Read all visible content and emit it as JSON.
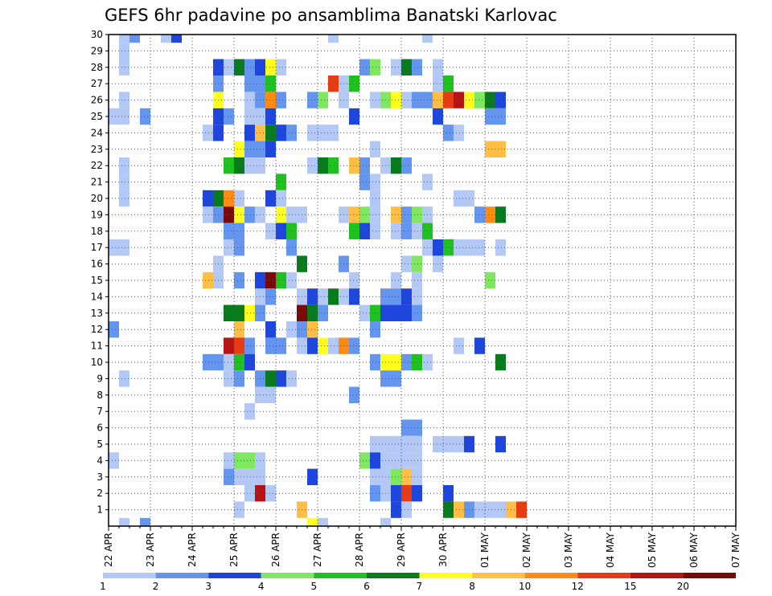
{
  "chart_data": {
    "type": "heatmap",
    "title": "GEFS 6hr padavine po ansamblima Banatski Karlovac",
    "xlabel": "",
    "ylabel": "",
    "x_tick_labels": [
      "22 APR",
      "23 APR",
      "24 APR",
      "25 APR",
      "26 APR",
      "27 APR",
      "28 APR",
      "29 APR",
      "30 APR",
      "01 MAY",
      "02 MAY",
      "03 MAY",
      "04 MAY",
      "05 MAY",
      "06 MAY",
      "07 MAY"
    ],
    "x_steps_per_day": 4,
    "x_steps": 60,
    "y_range": [
      0,
      30
    ],
    "y_ticks": [
      1,
      2,
      3,
      4,
      5,
      6,
      7,
      8,
      9,
      10,
      11,
      12,
      13,
      14,
      15,
      16,
      17,
      18,
      19,
      20,
      21,
      22,
      23,
      24,
      25,
      26,
      27,
      28,
      29,
      30
    ],
    "grid": true,
    "legend": {
      "placement": "bottom",
      "labels": [
        "1",
        "2",
        "3",
        "4",
        "5",
        "6",
        "7",
        "8",
        "10",
        "12",
        "15",
        "20"
      ],
      "colors": [
        "#b4c8f5",
        "#6496f0",
        "#1e46dc",
        "#80e860",
        "#20c020",
        "#0a7a1e",
        "#ffff20",
        "#ffbe46",
        "#ff8a14",
        "#e63c14",
        "#b41414",
        "#780a0a"
      ]
    },
    "cells": [
      [
        1,
        30,
        1
      ],
      [
        2,
        30,
        2
      ],
      [
        5,
        30,
        1
      ],
      [
        6,
        30,
        3
      ],
      [
        21,
        30,
        1
      ],
      [
        30,
        30,
        1
      ],
      [
        1,
        29,
        1
      ],
      [
        1,
        28,
        1
      ],
      [
        10,
        28,
        3
      ],
      [
        11,
        28,
        1
      ],
      [
        12,
        28,
        6
      ],
      [
        13,
        28,
        2
      ],
      [
        14,
        28,
        3
      ],
      [
        15,
        28,
        7
      ],
      [
        16,
        28,
        1
      ],
      [
        24,
        28,
        2
      ],
      [
        25,
        28,
        4
      ],
      [
        27,
        28,
        1
      ],
      [
        28,
        28,
        6
      ],
      [
        29,
        28,
        2
      ],
      [
        31,
        28,
        1
      ],
      [
        10,
        27,
        2
      ],
      [
        13,
        27,
        2
      ],
      [
        14,
        27,
        2
      ],
      [
        15,
        27,
        5
      ],
      [
        21,
        27,
        10
      ],
      [
        22,
        27,
        1
      ],
      [
        23,
        27,
        5
      ],
      [
        31,
        27,
        1
      ],
      [
        32,
        27,
        5
      ],
      [
        1,
        26,
        1
      ],
      [
        10,
        26,
        7
      ],
      [
        13,
        26,
        1
      ],
      [
        14,
        26,
        2
      ],
      [
        15,
        26,
        9
      ],
      [
        16,
        26,
        2
      ],
      [
        19,
        26,
        2
      ],
      [
        20,
        26,
        4
      ],
      [
        22,
        26,
        1
      ],
      [
        25,
        26,
        1
      ],
      [
        26,
        26,
        4
      ],
      [
        27,
        26,
        7
      ],
      [
        28,
        26,
        1
      ],
      [
        29,
        26,
        2
      ],
      [
        30,
        26,
        2
      ],
      [
        31,
        26,
        8
      ],
      [
        32,
        26,
        10
      ],
      [
        33,
        26,
        11
      ],
      [
        34,
        26,
        7
      ],
      [
        35,
        26,
        4
      ],
      [
        36,
        26,
        6
      ],
      [
        37,
        26,
        3
      ],
      [
        0,
        25,
        1
      ],
      [
        1,
        25,
        1
      ],
      [
        3,
        25,
        2
      ],
      [
        10,
        25,
        3
      ],
      [
        11,
        25,
        2
      ],
      [
        13,
        25,
        1
      ],
      [
        14,
        25,
        1
      ],
      [
        15,
        25,
        3
      ],
      [
        23,
        25,
        3
      ],
      [
        31,
        25,
        3
      ],
      [
        36,
        25,
        2
      ],
      [
        37,
        25,
        2
      ],
      [
        9,
        24,
        1
      ],
      [
        10,
        24,
        3
      ],
      [
        13,
        24,
        3
      ],
      [
        14,
        24,
        8
      ],
      [
        15,
        24,
        6
      ],
      [
        16,
        24,
        3
      ],
      [
        17,
        24,
        2
      ],
      [
        19,
        24,
        1
      ],
      [
        20,
        24,
        1
      ],
      [
        21,
        24,
        1
      ],
      [
        32,
        24,
        2
      ],
      [
        33,
        24,
        1
      ],
      [
        12,
        23,
        7
      ],
      [
        13,
        23,
        2
      ],
      [
        14,
        23,
        2
      ],
      [
        15,
        23,
        3
      ],
      [
        25,
        23,
        1
      ],
      [
        36,
        23,
        8
      ],
      [
        37,
        23,
        8
      ],
      [
        1,
        22,
        1
      ],
      [
        11,
        22,
        5
      ],
      [
        12,
        22,
        6
      ],
      [
        13,
        22,
        1
      ],
      [
        14,
        22,
        1
      ],
      [
        19,
        22,
        1
      ],
      [
        20,
        22,
        6
      ],
      [
        21,
        22,
        5
      ],
      [
        23,
        22,
        8
      ],
      [
        24,
        22,
        2
      ],
      [
        26,
        22,
        1
      ],
      [
        27,
        22,
        6
      ],
      [
        28,
        22,
        2
      ],
      [
        1,
        21,
        1
      ],
      [
        16,
        21,
        5
      ],
      [
        24,
        21,
        2
      ],
      [
        25,
        21,
        1
      ],
      [
        30,
        21,
        1
      ],
      [
        1,
        20,
        1
      ],
      [
        9,
        20,
        3
      ],
      [
        10,
        20,
        6
      ],
      [
        11,
        20,
        9
      ],
      [
        12,
        20,
        1
      ],
      [
        15,
        20,
        3
      ],
      [
        16,
        20,
        1
      ],
      [
        25,
        20,
        1
      ],
      [
        33,
        20,
        1
      ],
      [
        34,
        20,
        1
      ],
      [
        9,
        19,
        1
      ],
      [
        10,
        19,
        2
      ],
      [
        11,
        19,
        12
      ],
      [
        12,
        19,
        7
      ],
      [
        13,
        19,
        2
      ],
      [
        14,
        19,
        1
      ],
      [
        16,
        19,
        7
      ],
      [
        17,
        19,
        1
      ],
      [
        18,
        19,
        1
      ],
      [
        22,
        19,
        1
      ],
      [
        23,
        19,
        8
      ],
      [
        24,
        19,
        4
      ],
      [
        25,
        19,
        1
      ],
      [
        27,
        19,
        8
      ],
      [
        28,
        19,
        2
      ],
      [
        29,
        19,
        4
      ],
      [
        30,
        19,
        1
      ],
      [
        35,
        19,
        2
      ],
      [
        36,
        19,
        9
      ],
      [
        37,
        19,
        6
      ],
      [
        11,
        18,
        2
      ],
      [
        12,
        18,
        2
      ],
      [
        15,
        18,
        1
      ],
      [
        16,
        18,
        3
      ],
      [
        17,
        18,
        5
      ],
      [
        23,
        18,
        5
      ],
      [
        24,
        18,
        3
      ],
      [
        25,
        18,
        1
      ],
      [
        27,
        18,
        1
      ],
      [
        28,
        18,
        2
      ],
      [
        29,
        18,
        1
      ],
      [
        30,
        18,
        5
      ],
      [
        0,
        17,
        1
      ],
      [
        1,
        17,
        1
      ],
      [
        11,
        17,
        1
      ],
      [
        12,
        17,
        2
      ],
      [
        17,
        17,
        2
      ],
      [
        30,
        17,
        1
      ],
      [
        31,
        17,
        3
      ],
      [
        32,
        17,
        5
      ],
      [
        33,
        17,
        1
      ],
      [
        34,
        17,
        1
      ],
      [
        35,
        17,
        1
      ],
      [
        37,
        17,
        1
      ],
      [
        10,
        16,
        1
      ],
      [
        18,
        16,
        6
      ],
      [
        22,
        16,
        2
      ],
      [
        28,
        16,
        1
      ],
      [
        29,
        16,
        4
      ],
      [
        31,
        16,
        1
      ],
      [
        9,
        15,
        8
      ],
      [
        10,
        15,
        1
      ],
      [
        12,
        15,
        2
      ],
      [
        14,
        15,
        3
      ],
      [
        15,
        15,
        12
      ],
      [
        16,
        15,
        5
      ],
      [
        17,
        15,
        1
      ],
      [
        23,
        15,
        1
      ],
      [
        27,
        15,
        1
      ],
      [
        29,
        15,
        1
      ],
      [
        36,
        15,
        4
      ],
      [
        14,
        14,
        1
      ],
      [
        15,
        14,
        2
      ],
      [
        18,
        14,
        1
      ],
      [
        19,
        14,
        3
      ],
      [
        20,
        14,
        1
      ],
      [
        21,
        14,
        6
      ],
      [
        22,
        14,
        1
      ],
      [
        23,
        14,
        3
      ],
      [
        26,
        14,
        2
      ],
      [
        27,
        14,
        2
      ],
      [
        28,
        14,
        3
      ],
      [
        29,
        14,
        1
      ],
      [
        11,
        13,
        6
      ],
      [
        12,
        13,
        6
      ],
      [
        13,
        13,
        7
      ],
      [
        14,
        13,
        2
      ],
      [
        18,
        13,
        12
      ],
      [
        19,
        13,
        6
      ],
      [
        20,
        13,
        2
      ],
      [
        24,
        13,
        1
      ],
      [
        25,
        13,
        5
      ],
      [
        26,
        13,
        3
      ],
      [
        27,
        13,
        3
      ],
      [
        28,
        13,
        3
      ],
      [
        29,
        13,
        2
      ],
      [
        0,
        12,
        2
      ],
      [
        12,
        12,
        8
      ],
      [
        15,
        12,
        3
      ],
      [
        17,
        12,
        1
      ],
      [
        18,
        12,
        2
      ],
      [
        19,
        12,
        8
      ],
      [
        25,
        12,
        2
      ],
      [
        11,
        11,
        11
      ],
      [
        12,
        11,
        10
      ],
      [
        13,
        11,
        2
      ],
      [
        15,
        11,
        2
      ],
      [
        16,
        11,
        2
      ],
      [
        18,
        11,
        1
      ],
      [
        19,
        11,
        3
      ],
      [
        20,
        11,
        7
      ],
      [
        21,
        11,
        1
      ],
      [
        22,
        11,
        9
      ],
      [
        23,
        11,
        2
      ],
      [
        33,
        11,
        1
      ],
      [
        35,
        11,
        3
      ],
      [
        9,
        10,
        2
      ],
      [
        10,
        10,
        2
      ],
      [
        11,
        10,
        1
      ],
      [
        12,
        10,
        5
      ],
      [
        13,
        10,
        3
      ],
      [
        25,
        10,
        2
      ],
      [
        26,
        10,
        7
      ],
      [
        27,
        10,
        7
      ],
      [
        28,
        10,
        2
      ],
      [
        29,
        10,
        5
      ],
      [
        30,
        10,
        1
      ],
      [
        37,
        10,
        6
      ],
      [
        1,
        9,
        1
      ],
      [
        11,
        9,
        1
      ],
      [
        12,
        9,
        2
      ],
      [
        14,
        9,
        2
      ],
      [
        15,
        9,
        6
      ],
      [
        16,
        9,
        3
      ],
      [
        17,
        9,
        1
      ],
      [
        26,
        9,
        2
      ],
      [
        27,
        9,
        2
      ],
      [
        14,
        8,
        1
      ],
      [
        15,
        8,
        1
      ],
      [
        23,
        8,
        2
      ],
      [
        13,
        7,
        1
      ],
      [
        28,
        6,
        2
      ],
      [
        29,
        6,
        2
      ],
      [
        25,
        5,
        1
      ],
      [
        26,
        5,
        1
      ],
      [
        27,
        5,
        1
      ],
      [
        28,
        5,
        1
      ],
      [
        29,
        5,
        1
      ],
      [
        31,
        5,
        1
      ],
      [
        32,
        5,
        1
      ],
      [
        33,
        5,
        1
      ],
      [
        34,
        5,
        3
      ],
      [
        37,
        5,
        3
      ],
      [
        0,
        4,
        1
      ],
      [
        11,
        4,
        1
      ],
      [
        12,
        4,
        4
      ],
      [
        13,
        4,
        4
      ],
      [
        14,
        4,
        1
      ],
      [
        24,
        4,
        4
      ],
      [
        25,
        4,
        3
      ],
      [
        26,
        4,
        1
      ],
      [
        27,
        4,
        1
      ],
      [
        28,
        4,
        1
      ],
      [
        29,
        4,
        1
      ],
      [
        11,
        3,
        2
      ],
      [
        12,
        3,
        1
      ],
      [
        13,
        3,
        1
      ],
      [
        14,
        3,
        1
      ],
      [
        19,
        3,
        3
      ],
      [
        25,
        3,
        1
      ],
      [
        26,
        3,
        1
      ],
      [
        27,
        3,
        4
      ],
      [
        28,
        3,
        8
      ],
      [
        29,
        3,
        1
      ],
      [
        13,
        2,
        1
      ],
      [
        14,
        2,
        11
      ],
      [
        15,
        2,
        1
      ],
      [
        25,
        2,
        2
      ],
      [
        26,
        2,
        1
      ],
      [
        27,
        2,
        3
      ],
      [
        28,
        2,
        10
      ],
      [
        29,
        2,
        3
      ],
      [
        32,
        2,
        3
      ],
      [
        12,
        1,
        1
      ],
      [
        18,
        1,
        8
      ],
      [
        27,
        1,
        3
      ],
      [
        28,
        1,
        1
      ],
      [
        32,
        1,
        6
      ],
      [
        33,
        1,
        8
      ],
      [
        34,
        1,
        2
      ],
      [
        35,
        1,
        1
      ],
      [
        36,
        1,
        1
      ],
      [
        37,
        1,
        1
      ],
      [
        38,
        1,
        8
      ],
      [
        39,
        1,
        10
      ],
      [
        1,
        0,
        1
      ],
      [
        3,
        0,
        2
      ],
      [
        19,
        0,
        7
      ],
      [
        20,
        0,
        1
      ],
      [
        26,
        0,
        1
      ]
    ]
  }
}
